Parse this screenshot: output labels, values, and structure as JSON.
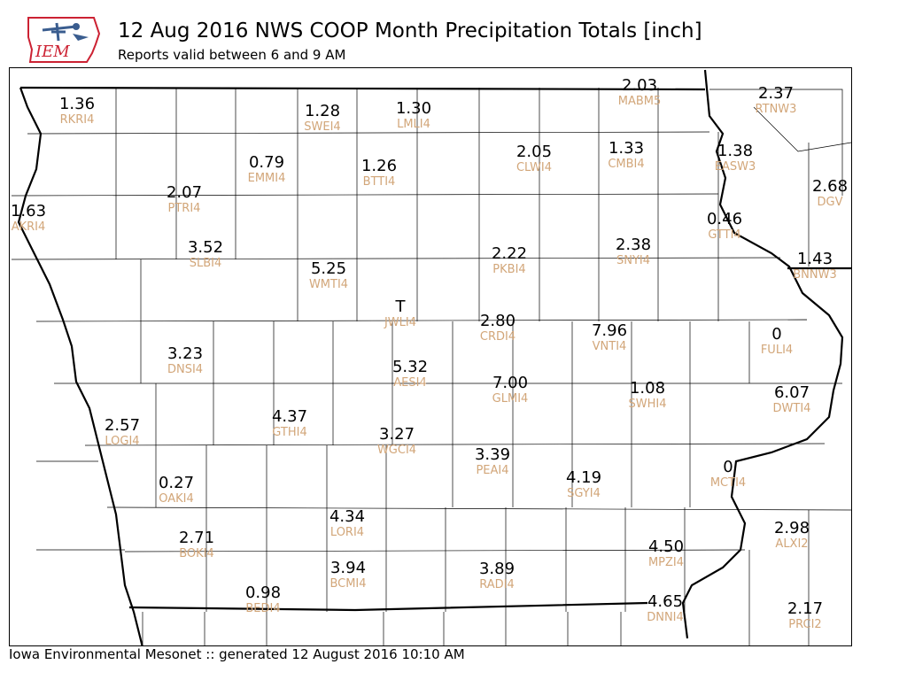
{
  "header": {
    "logo_text": "IEM",
    "title": "12 Aug 2016 NWS COOP Month Precipitation Totals [inch]",
    "subtitle": "Reports valid between 6 and 9 AM"
  },
  "footer": {
    "text": "Iowa Environmental Mesonet :: generated 12 August 2016 10:10 AM"
  },
  "colors": {
    "value_text": "#000000",
    "station_text": "#d2a679",
    "county_lines": "#000000"
  },
  "stations": [
    {
      "id": "RKRI4",
      "value": "1.36"
    },
    {
      "id": "SWEI4",
      "value": "1.28"
    },
    {
      "id": "LMLI4",
      "value": "1.30"
    },
    {
      "id": "MABM5",
      "value": "2.03"
    },
    {
      "id": "RTNW3",
      "value": "2.37"
    },
    {
      "id": "CLWI4",
      "value": "2.05"
    },
    {
      "id": "CMBI4",
      "value": "1.33"
    },
    {
      "id": "EASW3",
      "value": "1.38"
    },
    {
      "id": "EMMI4",
      "value": "0.79"
    },
    {
      "id": "BTTI4",
      "value": "1.26"
    },
    {
      "id": "PTRI4",
      "value": "2.07"
    },
    {
      "id": "DGV",
      "value": "2.68"
    },
    {
      "id": "AKRI4",
      "value": "1.63"
    },
    {
      "id": "GTTI4",
      "value": "0.46"
    },
    {
      "id": "SLBI4",
      "value": "3.52"
    },
    {
      "id": "SNYI4",
      "value": "2.38"
    },
    {
      "id": "PKBI4",
      "value": "2.22"
    },
    {
      "id": "BNNW3",
      "value": "1.43"
    },
    {
      "id": "WMTI4",
      "value": "5.25"
    },
    {
      "id": "JWLI4",
      "value": "T"
    },
    {
      "id": "CRDI4",
      "value": "2.80"
    },
    {
      "id": "VNTI4",
      "value": "7.96"
    },
    {
      "id": "FULI4",
      "value": "0"
    },
    {
      "id": "DNSI4",
      "value": "3.23"
    },
    {
      "id": "AESI4",
      "value": "5.32"
    },
    {
      "id": "GLMI4",
      "value": "7.00"
    },
    {
      "id": "SWHI4",
      "value": "1.08"
    },
    {
      "id": "DWTI4",
      "value": "6.07"
    },
    {
      "id": "LOGI4",
      "value": "2.57"
    },
    {
      "id": "GTHI4",
      "value": "4.37"
    },
    {
      "id": "WGCI4",
      "value": "3.27"
    },
    {
      "id": "PEAI4",
      "value": "3.39"
    },
    {
      "id": "OAKI4",
      "value": "0.27"
    },
    {
      "id": "SGYI4",
      "value": "4.19"
    },
    {
      "id": "MCTI4",
      "value": "0"
    },
    {
      "id": "LORI4",
      "value": "4.34"
    },
    {
      "id": "ALXI2",
      "value": "2.98"
    },
    {
      "id": "BOKI4",
      "value": "2.71"
    },
    {
      "id": "MPZI4",
      "value": "4.50"
    },
    {
      "id": "BCMI4",
      "value": "3.94"
    },
    {
      "id": "RADI4",
      "value": "3.89"
    },
    {
      "id": "BEDI4",
      "value": "0.98"
    },
    {
      "id": "DNNI4",
      "value": "4.65"
    },
    {
      "id": "PRCI2",
      "value": "2.17"
    }
  ]
}
